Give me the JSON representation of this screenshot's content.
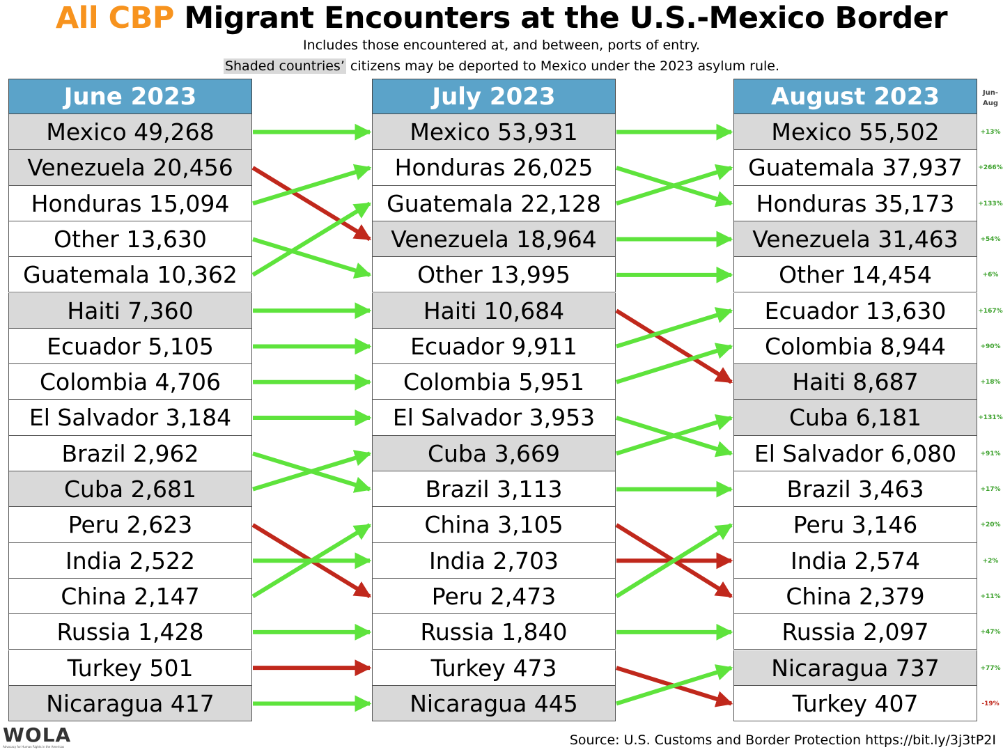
{
  "title": {
    "accent": "All CBP",
    "rest": " Migrant Encounters at the U.S.-Mexico Border"
  },
  "subtitle": "Includes those encountered at, and between, ports of entry.",
  "note": {
    "shaded_part": "Shaded countries’",
    "rest": " citizens may be deported to Mexico under the 2023 asylum rule."
  },
  "change_header": {
    "line1": "Jun-",
    "line2": "Aug"
  },
  "logo": {
    "name": "WOLA",
    "tagline": "Advocacy for Human Rights in the Americas"
  },
  "source": "Source: U.S. Customs and Border Protection https://bit.ly/3j3tP2I",
  "colors": {
    "header": "#5ba3c9",
    "accent": "#F7931E",
    "shaded": "#d9d9d9",
    "up_arrow": "#5ee33c",
    "down_arrow": "#c0281c",
    "pct_up": "#3aa02a",
    "pct_down": "#c0281c"
  },
  "chart_data": {
    "type": "table",
    "columns": [
      {
        "header": "June 2023",
        "rows": [
          {
            "country": "Mexico",
            "value": 49268,
            "label": "Mexico 49,268",
            "shaded": true
          },
          {
            "country": "Venezuela",
            "value": 20456,
            "label": "Venezuela 20,456",
            "shaded": true
          },
          {
            "country": "Honduras",
            "value": 15094,
            "label": "Honduras 15,094",
            "shaded": false
          },
          {
            "country": "Other",
            "value": 13630,
            "label": "Other 13,630",
            "shaded": false
          },
          {
            "country": "Guatemala",
            "value": 10362,
            "label": "Guatemala 10,362",
            "shaded": false
          },
          {
            "country": "Haiti",
            "value": 7360,
            "label": "Haiti 7,360",
            "shaded": true
          },
          {
            "country": "Ecuador",
            "value": 5105,
            "label": "Ecuador 5,105",
            "shaded": false
          },
          {
            "country": "Colombia",
            "value": 4706,
            "label": "Colombia 4,706",
            "shaded": false
          },
          {
            "country": "El Salvador",
            "value": 3184,
            "label": "El Salvador 3,184",
            "shaded": false
          },
          {
            "country": "Brazil",
            "value": 2962,
            "label": "Brazil 2,962",
            "shaded": false
          },
          {
            "country": "Cuba",
            "value": 2681,
            "label": "Cuba 2,681",
            "shaded": true
          },
          {
            "country": "Peru",
            "value": 2623,
            "label": "Peru 2,623",
            "shaded": false
          },
          {
            "country": "India",
            "value": 2522,
            "label": "India 2,522",
            "shaded": false
          },
          {
            "country": "China",
            "value": 2147,
            "label": "China 2,147",
            "shaded": false
          },
          {
            "country": "Russia",
            "value": 1428,
            "label": "Russia 1,428",
            "shaded": false
          },
          {
            "country": "Turkey",
            "value": 501,
            "label": "Turkey 501",
            "shaded": false
          },
          {
            "country": "Nicaragua",
            "value": 417,
            "label": "Nicaragua 417",
            "shaded": true
          }
        ]
      },
      {
        "header": "July 2023",
        "rows": [
          {
            "country": "Mexico",
            "value": 53931,
            "label": "Mexico 53,931",
            "shaded": true
          },
          {
            "country": "Honduras",
            "value": 26025,
            "label": "Honduras 26,025",
            "shaded": false
          },
          {
            "country": "Guatemala",
            "value": 22128,
            "label": "Guatemala 22,128",
            "shaded": false
          },
          {
            "country": "Venezuela",
            "value": 18964,
            "label": "Venezuela 18,964",
            "shaded": true
          },
          {
            "country": "Other",
            "value": 13995,
            "label": "Other 13,995",
            "shaded": false
          },
          {
            "country": "Haiti",
            "value": 10684,
            "label": "Haiti 10,684",
            "shaded": true
          },
          {
            "country": "Ecuador",
            "value": 9911,
            "label": "Ecuador 9,911",
            "shaded": false
          },
          {
            "country": "Colombia",
            "value": 5951,
            "label": "Colombia 5,951",
            "shaded": false
          },
          {
            "country": "El Salvador",
            "value": 3953,
            "label": "El Salvador 3,953",
            "shaded": false
          },
          {
            "country": "Cuba",
            "value": 3669,
            "label": "Cuba 3,669",
            "shaded": true
          },
          {
            "country": "Brazil",
            "value": 3113,
            "label": "Brazil 3,113",
            "shaded": false
          },
          {
            "country": "China",
            "value": 3105,
            "label": "China 3,105",
            "shaded": false
          },
          {
            "country": "India",
            "value": 2703,
            "label": "India 2,703",
            "shaded": false
          },
          {
            "country": "Peru",
            "value": 2473,
            "label": "Peru 2,473",
            "shaded": false
          },
          {
            "country": "Russia",
            "value": 1840,
            "label": "Russia 1,840",
            "shaded": false
          },
          {
            "country": "Turkey",
            "value": 473,
            "label": "Turkey 473",
            "shaded": false
          },
          {
            "country": "Nicaragua",
            "value": 445,
            "label": "Nicaragua 445",
            "shaded": true
          }
        ]
      },
      {
        "header": "August 2023",
        "rows": [
          {
            "country": "Mexico",
            "value": 55502,
            "label": "Mexico 55,502",
            "shaded": true,
            "change": "+13%"
          },
          {
            "country": "Guatemala",
            "value": 37937,
            "label": "Guatemala 37,937",
            "shaded": false,
            "change": "+266%"
          },
          {
            "country": "Honduras",
            "value": 35173,
            "label": "Honduras 35,173",
            "shaded": false,
            "change": "+133%"
          },
          {
            "country": "Venezuela",
            "value": 31463,
            "label": "Venezuela 31,463",
            "shaded": true,
            "change": "+54%"
          },
          {
            "country": "Other",
            "value": 14454,
            "label": "Other 14,454",
            "shaded": false,
            "change": "+6%"
          },
          {
            "country": "Ecuador",
            "value": 13630,
            "label": "Ecuador 13,630",
            "shaded": false,
            "change": "+167%"
          },
          {
            "country": "Colombia",
            "value": 8944,
            "label": "Colombia 8,944",
            "shaded": false,
            "change": "+90%"
          },
          {
            "country": "Haiti",
            "value": 8687,
            "label": "Haiti 8,687",
            "shaded": true,
            "change": "+18%"
          },
          {
            "country": "Cuba",
            "value": 6181,
            "label": "Cuba 6,181",
            "shaded": true,
            "change": "+131%"
          },
          {
            "country": "El Salvador",
            "value": 6080,
            "label": "El Salvador 6,080",
            "shaded": false,
            "change": "+91%"
          },
          {
            "country": "Brazil",
            "value": 3463,
            "label": "Brazil 3,463",
            "shaded": false,
            "change": "+17%"
          },
          {
            "country": "Peru",
            "value": 3146,
            "label": "Peru 3,146",
            "shaded": false,
            "change": "+20%"
          },
          {
            "country": "India",
            "value": 2574,
            "label": "India 2,574",
            "shaded": false,
            "change": "+2%"
          },
          {
            "country": "China",
            "value": 2379,
            "label": "China 2,379",
            "shaded": false,
            "change": "+11%"
          },
          {
            "country": "Russia",
            "value": 2097,
            "label": "Russia 2,097",
            "shaded": false,
            "change": "+47%"
          },
          {
            "country": "Nicaragua",
            "value": 737,
            "label": "Nicaragua 737",
            "shaded": true,
            "change": "+77%"
          },
          {
            "country": "Turkey",
            "value": 407,
            "label": "Turkey 407",
            "shaded": false,
            "change": "-19%"
          }
        ]
      }
    ]
  }
}
